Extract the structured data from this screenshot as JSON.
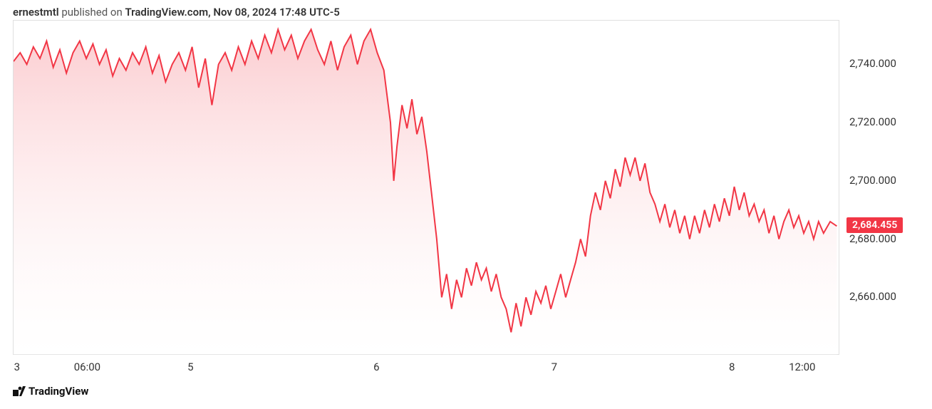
{
  "header": {
    "author": "ernestmtl",
    "published_on": " published on ",
    "site_time": "TradingView.com, Nov 08, 2024 17:48 UTC-5"
  },
  "footer": {
    "brand": "TradingView"
  },
  "chart": {
    "type": "area",
    "line_color": "#f23645",
    "fill_top_color": "#fbc7cb",
    "fill_bottom_color": "#ffffff",
    "background_color": "#ffffff",
    "border_color": "#e0e0e0",
    "line_width": 2,
    "current_price": "2,684.455",
    "badge_bg": "#f23645",
    "badge_text_color": "#ffffff",
    "ylim": [
      2640,
      2755
    ],
    "y_ticks": [
      {
        "value": 2740,
        "label": "2,740.000"
      },
      {
        "value": 2720,
        "label": "2,720.000"
      },
      {
        "value": 2700,
        "label": "2,700.000"
      },
      {
        "value": 2680,
        "label": "2,680.000"
      },
      {
        "value": 2660,
        "label": "2,660.000"
      }
    ],
    "x_ticks": [
      {
        "pos": 0.005,
        "label": "3"
      },
      {
        "pos": 0.09,
        "label": "06:00"
      },
      {
        "pos": 0.215,
        "label": "5"
      },
      {
        "pos": 0.44,
        "label": "6"
      },
      {
        "pos": 0.655,
        "label": "7"
      },
      {
        "pos": 0.87,
        "label": "8"
      },
      {
        "pos": 0.955,
        "label": "12:00"
      }
    ],
    "series": [
      {
        "x": 0.0,
        "y": 2741
      },
      {
        "x": 0.008,
        "y": 2744
      },
      {
        "x": 0.016,
        "y": 2740
      },
      {
        "x": 0.024,
        "y": 2746
      },
      {
        "x": 0.032,
        "y": 2742
      },
      {
        "x": 0.04,
        "y": 2748
      },
      {
        "x": 0.048,
        "y": 2739
      },
      {
        "x": 0.056,
        "y": 2745
      },
      {
        "x": 0.064,
        "y": 2737
      },
      {
        "x": 0.072,
        "y": 2744
      },
      {
        "x": 0.08,
        "y": 2748
      },
      {
        "x": 0.088,
        "y": 2742
      },
      {
        "x": 0.096,
        "y": 2747
      },
      {
        "x": 0.104,
        "y": 2740
      },
      {
        "x": 0.112,
        "y": 2745
      },
      {
        "x": 0.12,
        "y": 2736
      },
      {
        "x": 0.128,
        "y": 2742
      },
      {
        "x": 0.136,
        "y": 2738
      },
      {
        "x": 0.144,
        "y": 2744
      },
      {
        "x": 0.152,
        "y": 2740
      },
      {
        "x": 0.16,
        "y": 2746
      },
      {
        "x": 0.168,
        "y": 2737
      },
      {
        "x": 0.176,
        "y": 2743
      },
      {
        "x": 0.184,
        "y": 2734
      },
      {
        "x": 0.192,
        "y": 2740
      },
      {
        "x": 0.2,
        "y": 2744
      },
      {
        "x": 0.208,
        "y": 2738
      },
      {
        "x": 0.216,
        "y": 2746
      },
      {
        "x": 0.224,
        "y": 2732
      },
      {
        "x": 0.232,
        "y": 2742
      },
      {
        "x": 0.24,
        "y": 2726
      },
      {
        "x": 0.248,
        "y": 2740
      },
      {
        "x": 0.256,
        "y": 2744
      },
      {
        "x": 0.264,
        "y": 2738
      },
      {
        "x": 0.272,
        "y": 2746
      },
      {
        "x": 0.28,
        "y": 2740
      },
      {
        "x": 0.288,
        "y": 2748
      },
      {
        "x": 0.296,
        "y": 2742
      },
      {
        "x": 0.304,
        "y": 2750
      },
      {
        "x": 0.312,
        "y": 2744
      },
      {
        "x": 0.32,
        "y": 2752
      },
      {
        "x": 0.328,
        "y": 2745
      },
      {
        "x": 0.336,
        "y": 2750
      },
      {
        "x": 0.344,
        "y": 2742
      },
      {
        "x": 0.352,
        "y": 2748
      },
      {
        "x": 0.36,
        "y": 2752
      },
      {
        "x": 0.368,
        "y": 2745
      },
      {
        "x": 0.376,
        "y": 2740
      },
      {
        "x": 0.384,
        "y": 2748
      },
      {
        "x": 0.392,
        "y": 2738
      },
      {
        "x": 0.4,
        "y": 2746
      },
      {
        "x": 0.408,
        "y": 2750
      },
      {
        "x": 0.416,
        "y": 2740
      },
      {
        "x": 0.424,
        "y": 2748
      },
      {
        "x": 0.432,
        "y": 2752
      },
      {
        "x": 0.44,
        "y": 2744
      },
      {
        "x": 0.448,
        "y": 2738
      },
      {
        "x": 0.456,
        "y": 2720
      },
      {
        "x": 0.46,
        "y": 2700
      },
      {
        "x": 0.464,
        "y": 2712
      },
      {
        "x": 0.47,
        "y": 2726
      },
      {
        "x": 0.476,
        "y": 2718
      },
      {
        "x": 0.482,
        "y": 2728
      },
      {
        "x": 0.488,
        "y": 2716
      },
      {
        "x": 0.494,
        "y": 2722
      },
      {
        "x": 0.5,
        "y": 2710
      },
      {
        "x": 0.506,
        "y": 2695
      },
      {
        "x": 0.512,
        "y": 2680
      },
      {
        "x": 0.518,
        "y": 2660
      },
      {
        "x": 0.524,
        "y": 2668
      },
      {
        "x": 0.53,
        "y": 2656
      },
      {
        "x": 0.536,
        "y": 2666
      },
      {
        "x": 0.542,
        "y": 2660
      },
      {
        "x": 0.548,
        "y": 2670
      },
      {
        "x": 0.554,
        "y": 2664
      },
      {
        "x": 0.56,
        "y": 2672
      },
      {
        "x": 0.566,
        "y": 2666
      },
      {
        "x": 0.572,
        "y": 2670
      },
      {
        "x": 0.578,
        "y": 2662
      },
      {
        "x": 0.584,
        "y": 2668
      },
      {
        "x": 0.59,
        "y": 2660
      },
      {
        "x": 0.596,
        "y": 2656
      },
      {
        "x": 0.602,
        "y": 2648
      },
      {
        "x": 0.608,
        "y": 2658
      },
      {
        "x": 0.614,
        "y": 2650
      },
      {
        "x": 0.62,
        "y": 2660
      },
      {
        "x": 0.626,
        "y": 2654
      },
      {
        "x": 0.632,
        "y": 2662
      },
      {
        "x": 0.638,
        "y": 2658
      },
      {
        "x": 0.644,
        "y": 2664
      },
      {
        "x": 0.65,
        "y": 2656
      },
      {
        "x": 0.656,
        "y": 2662
      },
      {
        "x": 0.662,
        "y": 2668
      },
      {
        "x": 0.668,
        "y": 2660
      },
      {
        "x": 0.674,
        "y": 2666
      },
      {
        "x": 0.68,
        "y": 2672
      },
      {
        "x": 0.686,
        "y": 2680
      },
      {
        "x": 0.692,
        "y": 2674
      },
      {
        "x": 0.698,
        "y": 2688
      },
      {
        "x": 0.704,
        "y": 2696
      },
      {
        "x": 0.71,
        "y": 2690
      },
      {
        "x": 0.716,
        "y": 2700
      },
      {
        "x": 0.722,
        "y": 2694
      },
      {
        "x": 0.728,
        "y": 2704
      },
      {
        "x": 0.734,
        "y": 2698
      },
      {
        "x": 0.74,
        "y": 2708
      },
      {
        "x": 0.746,
        "y": 2702
      },
      {
        "x": 0.752,
        "y": 2708
      },
      {
        "x": 0.758,
        "y": 2700
      },
      {
        "x": 0.764,
        "y": 2706
      },
      {
        "x": 0.77,
        "y": 2696
      },
      {
        "x": 0.776,
        "y": 2692
      },
      {
        "x": 0.782,
        "y": 2686
      },
      {
        "x": 0.788,
        "y": 2692
      },
      {
        "x": 0.794,
        "y": 2684
      },
      {
        "x": 0.8,
        "y": 2690
      },
      {
        "x": 0.806,
        "y": 2682
      },
      {
        "x": 0.812,
        "y": 2688
      },
      {
        "x": 0.818,
        "y": 2680
      },
      {
        "x": 0.824,
        "y": 2688
      },
      {
        "x": 0.83,
        "y": 2682
      },
      {
        "x": 0.836,
        "y": 2690
      },
      {
        "x": 0.842,
        "y": 2684
      },
      {
        "x": 0.848,
        "y": 2692
      },
      {
        "x": 0.854,
        "y": 2686
      },
      {
        "x": 0.86,
        "y": 2694
      },
      {
        "x": 0.866,
        "y": 2688
      },
      {
        "x": 0.872,
        "y": 2698
      },
      {
        "x": 0.878,
        "y": 2690
      },
      {
        "x": 0.884,
        "y": 2696
      },
      {
        "x": 0.89,
        "y": 2688
      },
      {
        "x": 0.896,
        "y": 2692
      },
      {
        "x": 0.902,
        "y": 2686
      },
      {
        "x": 0.908,
        "y": 2690
      },
      {
        "x": 0.914,
        "y": 2682
      },
      {
        "x": 0.92,
        "y": 2688
      },
      {
        "x": 0.926,
        "y": 2680
      },
      {
        "x": 0.932,
        "y": 2686
      },
      {
        "x": 0.938,
        "y": 2690
      },
      {
        "x": 0.944,
        "y": 2684
      },
      {
        "x": 0.95,
        "y": 2688
      },
      {
        "x": 0.956,
        "y": 2682
      },
      {
        "x": 0.962,
        "y": 2686
      },
      {
        "x": 0.968,
        "y": 2680
      },
      {
        "x": 0.974,
        "y": 2686
      },
      {
        "x": 0.98,
        "y": 2682
      },
      {
        "x": 0.988,
        "y": 2686
      },
      {
        "x": 0.996,
        "y": 2684.455
      }
    ]
  }
}
